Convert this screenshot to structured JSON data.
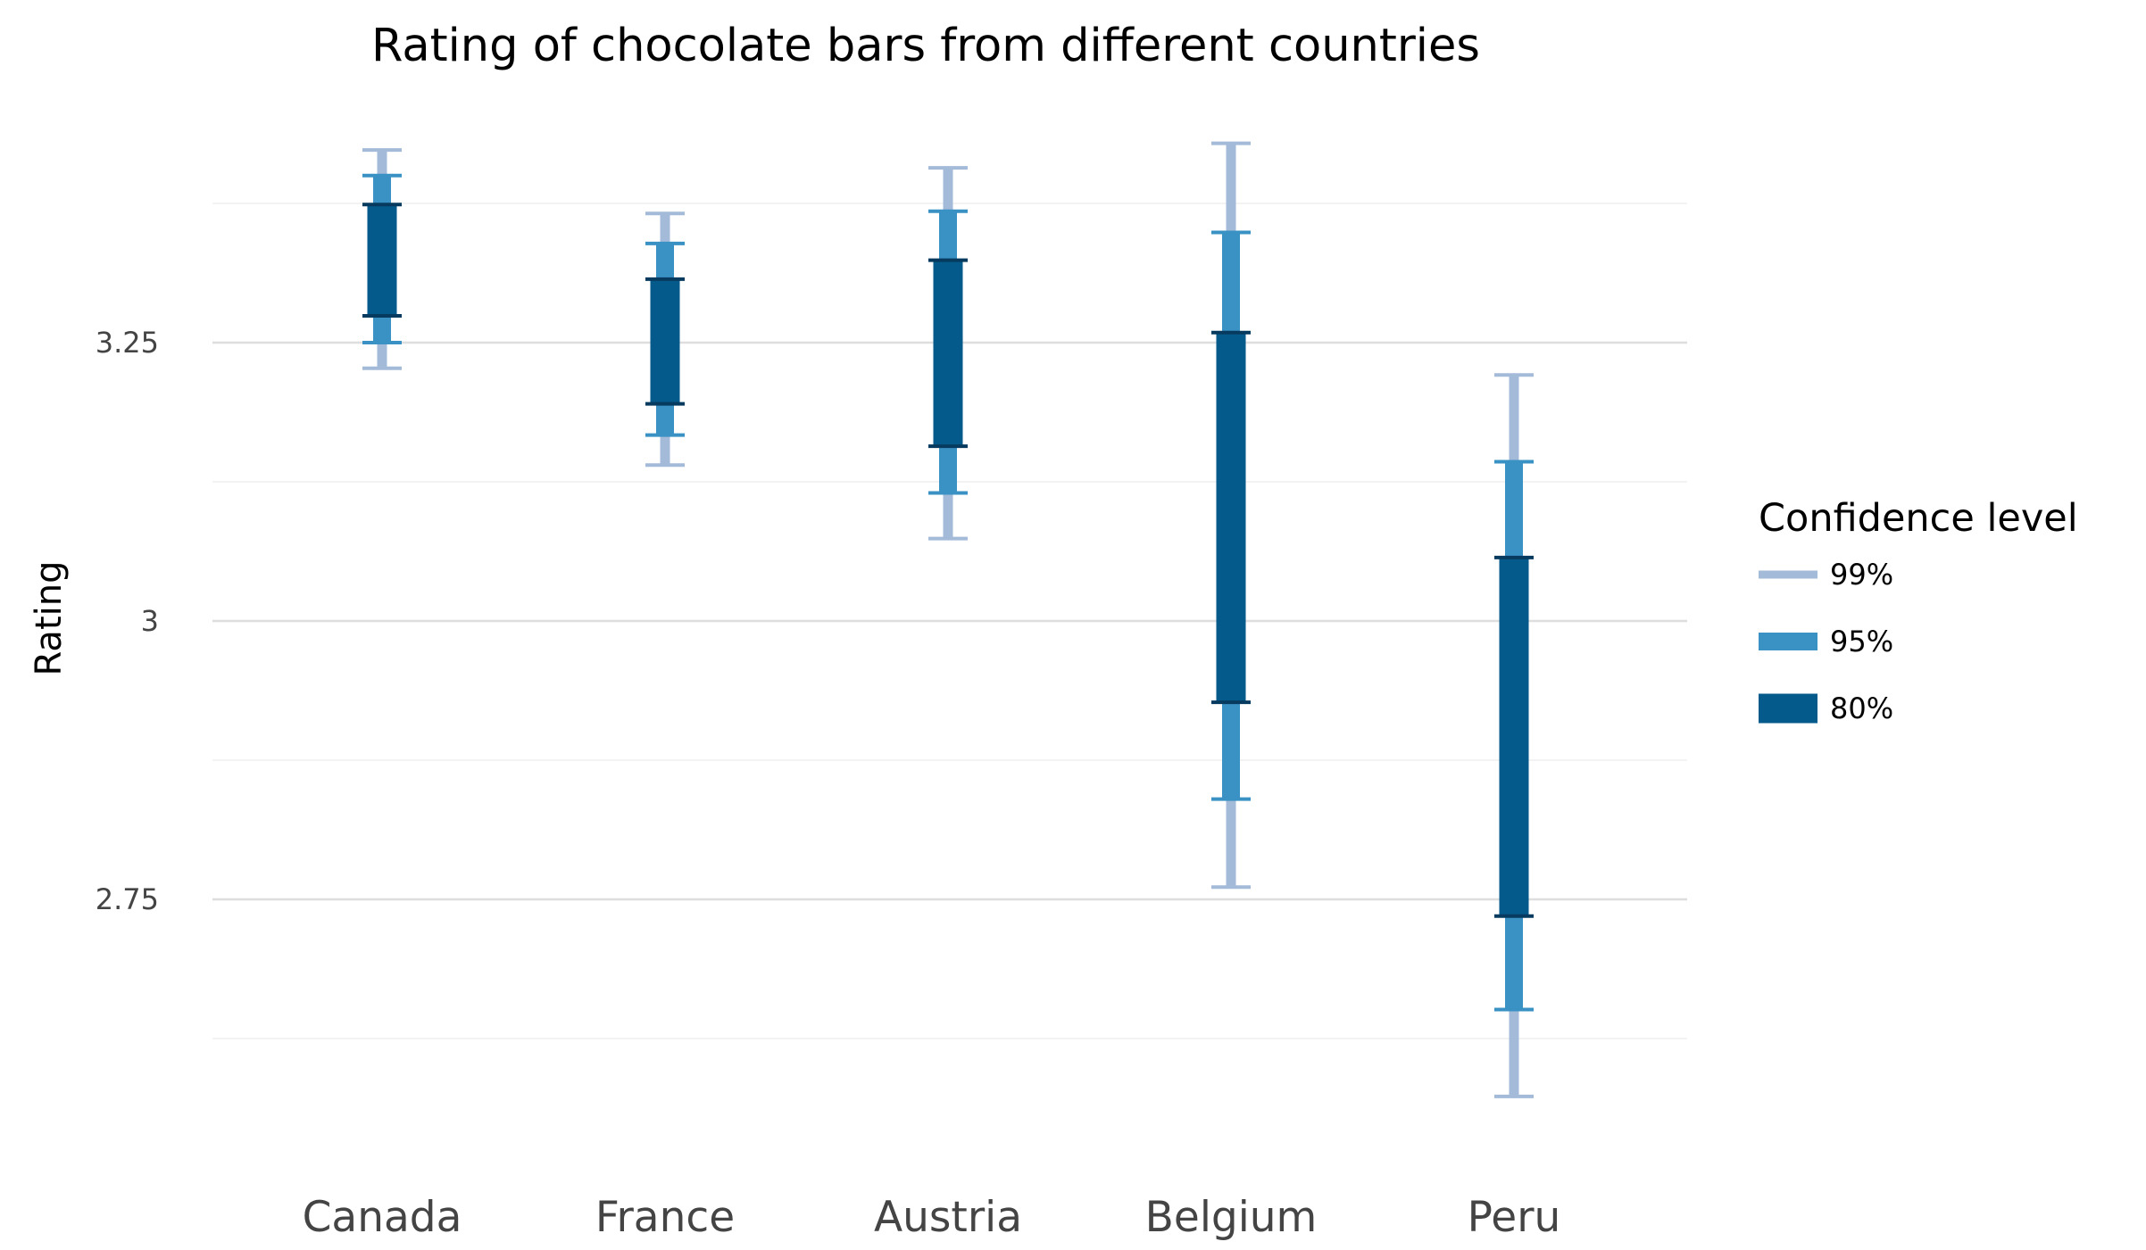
{
  "chart_data": {
    "type": "interval",
    "title": "Rating of chocolate bars from different countries",
    "xlabel": "",
    "ylabel": "Rating",
    "ylim": [
      2.5,
      3.5
    ],
    "yticks": [
      {
        "value": 3.25,
        "label": "3.25"
      },
      {
        "value": 3.0,
        "label": "3"
      },
      {
        "value": 2.75,
        "label": "2.75"
      }
    ],
    "minor_gridlines": [
      3.375,
      3.125,
      2.875,
      2.625
    ],
    "grid": true,
    "legend_position": "right",
    "legend_title": "Confidence level",
    "categories": [
      "Canada",
      "France",
      "Austria",
      "Belgium",
      "Peru"
    ],
    "series": [
      {
        "name": "99%",
        "color": "#a3bad9",
        "intervals": [
          [
            3.227,
            3.423
          ],
          [
            3.14,
            3.366
          ],
          [
            3.074,
            3.407
          ],
          [
            2.761,
            3.429
          ],
          [
            2.573,
            3.221
          ]
        ]
      },
      {
        "name": "95%",
        "color": "#3a91c4",
        "intervals": [
          [
            3.25,
            3.4
          ],
          [
            3.167,
            3.339
          ],
          [
            3.115,
            3.368
          ],
          [
            2.84,
            3.349
          ],
          [
            2.651,
            3.143
          ]
        ]
      },
      {
        "name": "80%",
        "color": "#055a8c",
        "intervals": [
          [
            3.274,
            3.374
          ],
          [
            3.195,
            3.307
          ],
          [
            3.157,
            3.324
          ],
          [
            2.927,
            3.259
          ],
          [
            2.735,
            3.057
          ]
        ]
      }
    ]
  }
}
